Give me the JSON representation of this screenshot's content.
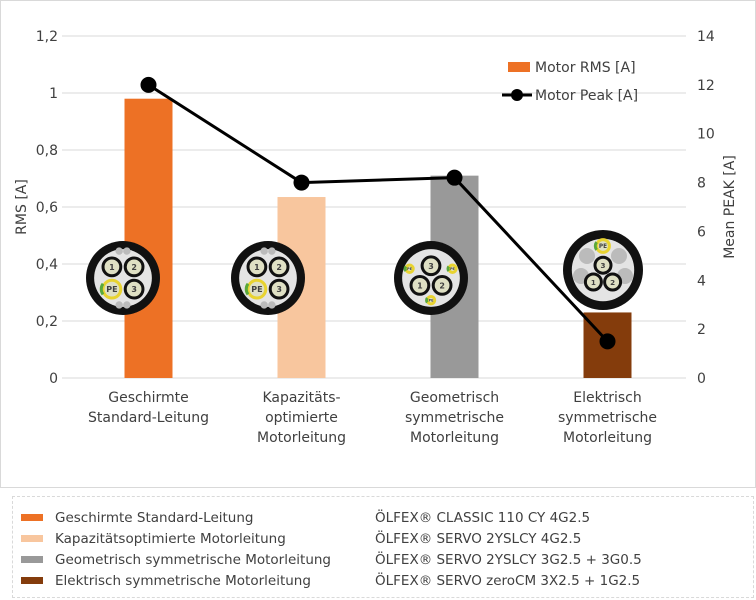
{
  "chart_data": {
    "type": "bar",
    "categories": [
      [
        "Geschirmte",
        "Standard-Leitung"
      ],
      [
        "Kapazitäts-",
        "optimierte",
        "Motorleitung"
      ],
      [
        "Geometrisch",
        "symmetrische",
        "Motorleitung"
      ],
      [
        "Elektrisch",
        "symmetrische",
        "Motorleitung"
      ]
    ],
    "series": [
      {
        "name": "Motor RMS [A]",
        "type": "bar",
        "axis": "left",
        "values": [
          0.98,
          0.635,
          0.71,
          0.23
        ]
      },
      {
        "name": "Motor Peak [A]",
        "type": "line",
        "axis": "right",
        "values": [
          12,
          8,
          8.2,
          1.5
        ]
      }
    ],
    "bar_colors": [
      "#ED7125",
      "#F8C69E",
      "#999999",
      "#843C0C"
    ],
    "line_color": "#000000",
    "ylabel": "RMS [A]",
    "y2label": "Mean PEAK [A]",
    "ylim": [
      0,
      1.2
    ],
    "y2lim": [
      0,
      14
    ],
    "yticks": [
      "0",
      "0,2",
      "0,4",
      "0,6",
      "0,8",
      "1",
      "1,2"
    ],
    "y2ticks": [
      "0",
      "2",
      "4",
      "6",
      "8",
      "10",
      "12",
      "14"
    ],
    "grid": true,
    "legend_position": "top-right",
    "cable_core_labels": [
      "1",
      "2",
      "3",
      "PE"
    ]
  },
  "legend": [
    {
      "name": "Geschirmte Standard-Leitung",
      "product": "ÖLFEX® CLASSIC 110 CY 4G2.5",
      "color": "#ED7125"
    },
    {
      "name": "Kapazitätsoptimierte Motorleitung",
      "product": "ÖLFEX® SERVO 2YSLCY 4G2.5",
      "color": "#F8C69E"
    },
    {
      "name": "Geometrisch symmetrische Motorleitung",
      "product": "ÖLFEX® SERVO 2YSLCY 3G2.5 + 3G0.5",
      "color": "#999999"
    },
    {
      "name": "Elektrisch symmetrische Motorleitung",
      "product": "ÖLFEX® SERVO zeroCM 3X2.5 + 1G2.5",
      "color": "#843C0C"
    }
  ]
}
